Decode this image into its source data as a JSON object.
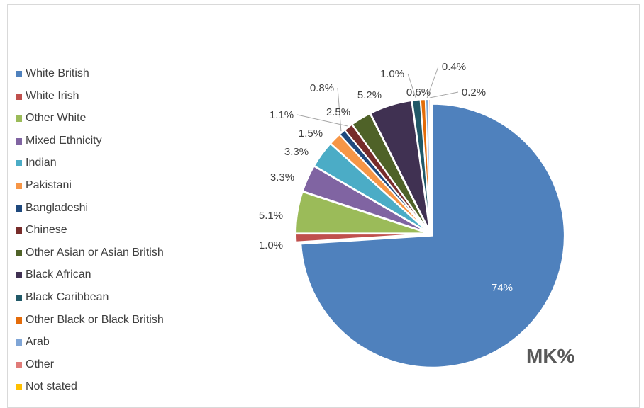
{
  "chart_data": {
    "type": "pie",
    "title": "MK%",
    "legend_position": "left",
    "slices": [
      {
        "name": "White British",
        "value": 74,
        "label": "74%",
        "color": "#4F81BD"
      },
      {
        "name": "White Irish",
        "value": 1.0,
        "label": "1.0%",
        "color": "#C0504D"
      },
      {
        "name": "Other White",
        "value": 5.1,
        "label": "5.1%",
        "color": "#9BBB59"
      },
      {
        "name": "Mixed Ethnicity",
        "value": 3.3,
        "label": "3.3%",
        "color": "#8064A2"
      },
      {
        "name": "Indian",
        "value": 3.3,
        "label": "3.3%",
        "color": "#4BACC6"
      },
      {
        "name": "Pakistani",
        "value": 1.5,
        "label": "1.5%",
        "color": "#F79646"
      },
      {
        "name": "Bangladeshi",
        "value": 0.8,
        "label": "0.8%",
        "color": "#1F497D"
      },
      {
        "name": "Chinese",
        "value": 1.1,
        "label": "1.1%",
        "color": "#772C2A"
      },
      {
        "name": "Other Asian or Asian British",
        "value": 2.5,
        "label": "2.5%",
        "color": "#4F6228"
      },
      {
        "name": "Black African",
        "value": 5.2,
        "label": "5.2%",
        "color": "#403152"
      },
      {
        "name": "Black Caribbean",
        "value": 1.0,
        "label": "1.0%",
        "color": "#215968"
      },
      {
        "name": "Other Black or Black British",
        "value": 0.6,
        "label": "0.6%",
        "color": "#E46C0A"
      },
      {
        "name": "Arab",
        "value": 0.4,
        "label": "0.4%",
        "color": "#7FA5D6"
      },
      {
        "name": "Other",
        "value": 0.2,
        "label": "0.2%",
        "color": "#E07B78"
      },
      {
        "name": "Not stated",
        "value": 0.0,
        "label": "",
        "color": "#FFC000"
      }
    ]
  }
}
